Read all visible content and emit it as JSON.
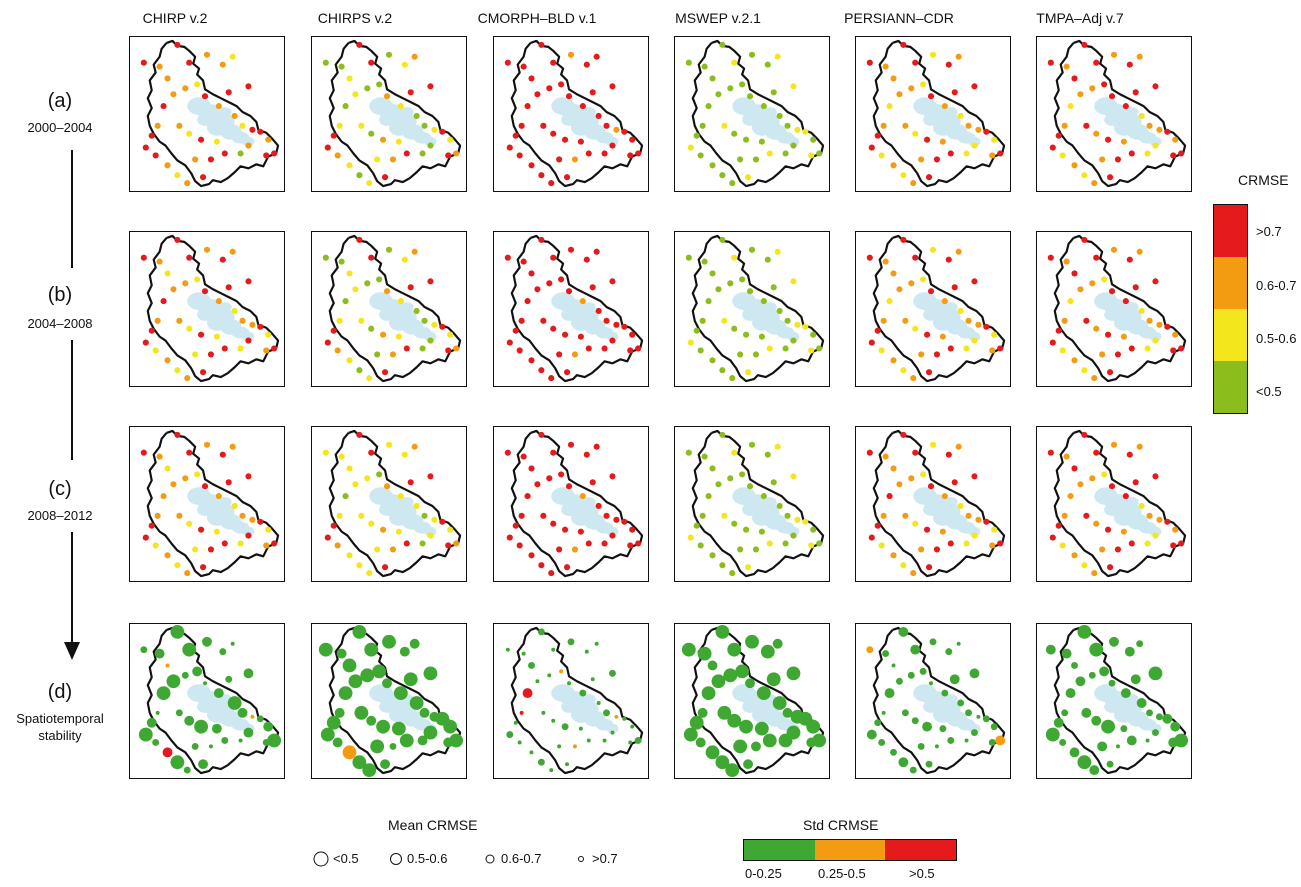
{
  "columns": [
    "CHIRP v.2",
    "CHIRPS v.2",
    "CMORPH–BLD v.1",
    "MSWEP v.2.1",
    "PERSIANN–CDR",
    "TMPA–Adj v.7"
  ],
  "rows": [
    {
      "letter": "(a)",
      "period": "2000–2004"
    },
    {
      "letter": "(b)",
      "period": "2004–2008"
    },
    {
      "letter": "(c)",
      "period": "2008–2012"
    },
    {
      "letter": "(d)",
      "period_lines": [
        "Spatiotemporal",
        "stability"
      ]
    }
  ],
  "colors": {
    "red": "#e41a1c",
    "orange": "#f39c12",
    "yellow": "#f4e61c",
    "lightgreen": "#8bbd1c",
    "green": "#3ea832",
    "lake": "#cde8f1",
    "outline": "#111111"
  },
  "crmse_legend": {
    "title": "CRMSE",
    "items": [
      {
        "label": ">0.7",
        "color": "#e41a1c"
      },
      {
        "label": "0.6-0.7",
        "color": "#f39c12"
      },
      {
        "label": "0.5-0.6",
        "color": "#f4e61c"
      },
      {
        "label": "<0.5",
        "color": "#8bbd1c"
      }
    ]
  },
  "mean_legend": {
    "title": "Mean CRMSE",
    "items": [
      {
        "label": "<0.5"
      },
      {
        "label": "0.5-0.6"
      },
      {
        "label": "0.6-0.7"
      },
      {
        "label": ">0.7"
      }
    ]
  },
  "std_legend": {
    "title": "Std CRMSE",
    "items": [
      {
        "label": "0-0.25",
        "color": "#3ea832"
      },
      {
        "label": "0.25-0.5",
        "color": "#f39c12"
      },
      {
        "label": ">0.5",
        "color": "#e41a1c"
      }
    ]
  },
  "map_panels": {
    "color_keys": [
      "red",
      "orange",
      "yellow",
      "lightgreen"
    ],
    "rows": [
      [
        [
          0,
          0,
          1,
          1,
          0,
          1,
          1,
          2,
          0,
          1,
          1,
          2,
          0,
          1,
          0,
          1,
          2,
          0,
          0,
          1,
          0,
          0,
          1,
          3,
          0,
          2,
          0,
          2,
          1,
          1,
          0,
          0,
          0,
          1,
          2,
          1,
          0,
          0,
          1,
          0
        ],
        [
          0,
          3,
          3,
          2,
          0,
          3,
          2,
          1,
          0,
          2,
          3,
          3,
          1,
          2,
          0,
          3,
          3,
          2,
          0,
          2,
          1,
          0,
          3,
          3,
          0,
          2,
          1,
          3,
          2,
          2,
          0,
          0,
          1,
          2,
          3,
          2,
          0,
          1,
          2,
          3
        ],
        [
          0,
          0,
          0,
          0,
          0,
          1,
          0,
          0,
          0,
          0,
          0,
          0,
          0,
          0,
          0,
          0,
          0,
          1,
          0,
          0,
          0,
          0,
          0,
          0,
          0,
          0,
          0,
          0,
          0,
          0,
          0,
          0,
          0,
          0,
          0,
          0,
          0,
          1,
          0,
          0
        ],
        [
          3,
          3,
          3,
          3,
          2,
          3,
          3,
          2,
          2,
          3,
          3,
          3,
          3,
          3,
          3,
          3,
          3,
          2,
          2,
          3,
          3,
          2,
          3,
          3,
          2,
          3,
          3,
          3,
          2,
          3,
          3,
          2,
          3,
          3,
          3,
          3,
          2,
          3,
          3,
          3
        ],
        [
          0,
          0,
          1,
          1,
          0,
          2,
          0,
          1,
          0,
          1,
          1,
          2,
          0,
          1,
          0,
          2,
          1,
          1,
          0,
          2,
          0,
          1,
          2,
          2,
          0,
          1,
          0,
          2,
          1,
          1,
          0,
          0,
          2,
          1,
          2,
          1,
          0,
          0,
          1,
          2
        ],
        [
          0,
          0,
          1,
          0,
          0,
          1,
          0,
          1,
          0,
          1,
          1,
          0,
          0,
          0,
          0,
          2,
          1,
          1,
          0,
          1,
          0,
          0,
          2,
          2,
          0,
          1,
          0,
          1,
          0,
          1,
          0,
          0,
          2,
          1,
          2,
          1,
          0,
          0,
          1,
          2
        ]
      ],
      [
        [
          0,
          0,
          1,
          2,
          0,
          1,
          0,
          1,
          0,
          1,
          1,
          2,
          0,
          1,
          0,
          2,
          1,
          1,
          0,
          2,
          0,
          1,
          0,
          2,
          0,
          2,
          0,
          2,
          1,
          1,
          0,
          0,
          2,
          1,
          2,
          1,
          0,
          0,
          2,
          0
        ],
        [
          0,
          3,
          3,
          2,
          0,
          3,
          2,
          1,
          0,
          2,
          3,
          3,
          1,
          2,
          0,
          3,
          3,
          2,
          0,
          2,
          1,
          0,
          3,
          3,
          0,
          2,
          1,
          3,
          2,
          2,
          0,
          0,
          1,
          2,
          3,
          2,
          0,
          1,
          3,
          3
        ],
        [
          0,
          0,
          0,
          0,
          0,
          0,
          0,
          0,
          0,
          0,
          0,
          0,
          0,
          1,
          0,
          0,
          0,
          0,
          0,
          0,
          0,
          0,
          0,
          0,
          0,
          0,
          0,
          0,
          0,
          0,
          0,
          0,
          0,
          0,
          0,
          0,
          0,
          1,
          0,
          0
        ],
        [
          3,
          3,
          3,
          3,
          2,
          3,
          3,
          2,
          2,
          3,
          3,
          3,
          3,
          3,
          3,
          3,
          3,
          2,
          2,
          3,
          3,
          2,
          3,
          3,
          2,
          3,
          3,
          3,
          2,
          3,
          3,
          2,
          3,
          3,
          3,
          3,
          2,
          3,
          3,
          3
        ],
        [
          0,
          0,
          1,
          1,
          0,
          2,
          0,
          1,
          0,
          1,
          1,
          2,
          0,
          1,
          0,
          2,
          1,
          1,
          0,
          2,
          0,
          1,
          2,
          2,
          0,
          1,
          0,
          2,
          1,
          1,
          0,
          0,
          2,
          1,
          2,
          1,
          0,
          0,
          1,
          2
        ],
        [
          0,
          0,
          1,
          0,
          0,
          1,
          0,
          1,
          0,
          1,
          1,
          2,
          0,
          0,
          0,
          2,
          1,
          1,
          0,
          1,
          0,
          0,
          2,
          2,
          0,
          1,
          0,
          1,
          0,
          1,
          0,
          0,
          2,
          1,
          2,
          1,
          0,
          0,
          1,
          2
        ]
      ],
      [
        [
          0,
          0,
          1,
          2,
          0,
          1,
          0,
          1,
          0,
          1,
          1,
          2,
          0,
          1,
          0,
          2,
          1,
          1,
          0,
          2,
          0,
          1,
          0,
          2,
          0,
          2,
          0,
          2,
          1,
          1,
          0,
          0,
          2,
          1,
          2,
          1,
          0,
          0,
          2,
          1
        ],
        [
          0,
          2,
          2,
          2,
          0,
          2,
          2,
          1,
          0,
          2,
          2,
          3,
          1,
          2,
          0,
          2,
          3,
          2,
          0,
          2,
          1,
          0,
          2,
          3,
          0,
          2,
          1,
          2,
          2,
          2,
          0,
          0,
          1,
          2,
          2,
          2,
          0,
          1,
          2,
          3
        ],
        [
          0,
          0,
          0,
          0,
          0,
          0,
          0,
          0,
          0,
          0,
          0,
          0,
          0,
          1,
          0,
          0,
          0,
          0,
          0,
          0,
          0,
          0,
          0,
          0,
          0,
          0,
          0,
          0,
          0,
          0,
          0,
          0,
          0,
          0,
          0,
          0,
          0,
          1,
          0,
          0
        ],
        [
          3,
          3,
          3,
          3,
          2,
          3,
          3,
          2,
          2,
          3,
          3,
          3,
          3,
          3,
          3,
          3,
          3,
          2,
          2,
          3,
          3,
          2,
          3,
          3,
          2,
          3,
          3,
          3,
          2,
          3,
          3,
          2,
          3,
          3,
          3,
          3,
          2,
          3,
          3,
          3
        ],
        [
          0,
          0,
          1,
          1,
          0,
          2,
          0,
          1,
          0,
          1,
          1,
          2,
          0,
          1,
          0,
          2,
          1,
          1,
          0,
          2,
          0,
          1,
          2,
          2,
          0,
          1,
          0,
          2,
          1,
          1,
          0,
          0,
          2,
          1,
          2,
          1,
          0,
          0,
          1,
          0
        ],
        [
          0,
          0,
          1,
          0,
          0,
          1,
          0,
          1,
          0,
          1,
          1,
          2,
          0,
          0,
          0,
          2,
          1,
          1,
          0,
          1,
          0,
          0,
          2,
          2,
          0,
          1,
          0,
          1,
          0,
          1,
          0,
          0,
          2,
          1,
          2,
          1,
          0,
          0,
          1,
          1
        ]
      ]
    ]
  },
  "stability_panels": {
    "color_keys": [
      "green",
      "orange",
      "red"
    ],
    "sizes": [
      [
        0,
        2,
        1,
        3,
        0,
        1,
        2,
        3,
        1,
        0,
        2,
        1,
        3,
        1,
        2,
        0,
        1,
        3,
        2,
        1,
        0,
        2,
        1,
        3,
        2,
        1,
        0,
        1,
        2,
        3,
        1,
        0,
        2,
        1,
        0,
        2,
        1,
        3,
        2,
        0
      ],
      [
        0,
        0,
        1,
        0,
        0,
        0,
        1,
        1,
        0,
        0,
        0,
        0,
        1,
        0,
        0,
        0,
        1,
        1,
        0,
        0,
        0,
        1,
        0,
        1,
        0,
        0,
        0,
        1,
        0,
        1,
        0,
        0,
        1,
        0,
        0,
        0,
        1,
        2,
        0,
        0
      ],
      [
        2,
        3,
        3,
        2,
        3,
        2,
        3,
        3,
        2,
        3,
        3,
        3,
        3,
        2,
        3,
        3,
        2,
        3,
        3,
        3,
        2,
        3,
        3,
        3,
        3,
        3,
        2,
        3,
        3,
        3,
        3,
        2,
        3,
        3,
        2,
        3,
        3,
        3,
        3,
        1
      ],
      [
        0,
        0,
        0,
        1,
        0,
        0,
        0,
        1,
        0,
        0,
        0,
        0,
        1,
        0,
        0,
        0,
        1,
        0,
        0,
        0,
        0,
        1,
        0,
        0,
        0,
        0,
        0,
        0,
        0,
        1,
        0,
        0,
        1,
        0,
        0,
        0,
        1,
        1,
        0,
        0
      ],
      [
        1,
        2,
        2,
        3,
        1,
        2,
        2,
        3,
        1,
        2,
        2,
        2,
        3,
        2,
        1,
        2,
        2,
        3,
        2,
        2,
        1,
        2,
        2,
        3,
        2,
        2,
        1,
        2,
        2,
        3,
        2,
        1,
        2,
        2,
        1,
        2,
        2,
        3,
        2,
        1
      ],
      [
        0,
        1,
        1,
        2,
        0,
        1,
        1,
        2,
        0,
        1,
        2,
        1,
        2,
        1,
        1,
        1,
        2,
        2,
        1,
        1,
        0,
        1,
        2,
        3,
        1,
        2,
        0,
        1,
        1,
        2,
        1,
        0,
        2,
        1,
        0,
        1,
        2,
        3,
        1,
        1
      ]
    ],
    "colors": [
      [
        0,
        0,
        0,
        1,
        0,
        0,
        0,
        0,
        0,
        0,
        0,
        0,
        0,
        0,
        0,
        0,
        0,
        1,
        0,
        0,
        0,
        0,
        0,
        0,
        0,
        0,
        0,
        0,
        0,
        0,
        0,
        0,
        0,
        2,
        0,
        0,
        0,
        0,
        0,
        0
      ],
      [
        0,
        0,
        0,
        0,
        0,
        0,
        0,
        0,
        0,
        0,
        0,
        0,
        0,
        0,
        0,
        0,
        0,
        0,
        0,
        0,
        0,
        0,
        0,
        0,
        0,
        0,
        0,
        0,
        0,
        0,
        0,
        0,
        0,
        1,
        0,
        0,
        0,
        0,
        0,
        0
      ],
      [
        0,
        0,
        0,
        0,
        0,
        0,
        0,
        0,
        0,
        0,
        0,
        1,
        0,
        0,
        0,
        0,
        0,
        1,
        0,
        0,
        0,
        0,
        0,
        0,
        0,
        0,
        0,
        0,
        0,
        2,
        0,
        0,
        0,
        0,
        0,
        0,
        0,
        1,
        0,
        2
      ],
      [
        0,
        0,
        0,
        0,
        0,
        0,
        0,
        0,
        0,
        0,
        0,
        0,
        0,
        0,
        0,
        0,
        0,
        0,
        0,
        0,
        0,
        0,
        0,
        0,
        0,
        0,
        0,
        0,
        0,
        0,
        0,
        0,
        0,
        0,
        0,
        0,
        0,
        0,
        0,
        0
      ],
      [
        0,
        1,
        0,
        0,
        0,
        0,
        0,
        0,
        0,
        0,
        0,
        0,
        0,
        0,
        0,
        0,
        0,
        0,
        0,
        0,
        1,
        0,
        0,
        0,
        0,
        0,
        0,
        0,
        0,
        0,
        0,
        0,
        0,
        0,
        0,
        0,
        0,
        0,
        0,
        0
      ],
      [
        0,
        0,
        0,
        0,
        0,
        0,
        0,
        0,
        0,
        0,
        0,
        0,
        0,
        0,
        0,
        0,
        0,
        0,
        0,
        0,
        0,
        0,
        0,
        0,
        0,
        0,
        0,
        0,
        0,
        0,
        0,
        0,
        0,
        0,
        0,
        0,
        0,
        0,
        0,
        0
      ]
    ]
  }
}
